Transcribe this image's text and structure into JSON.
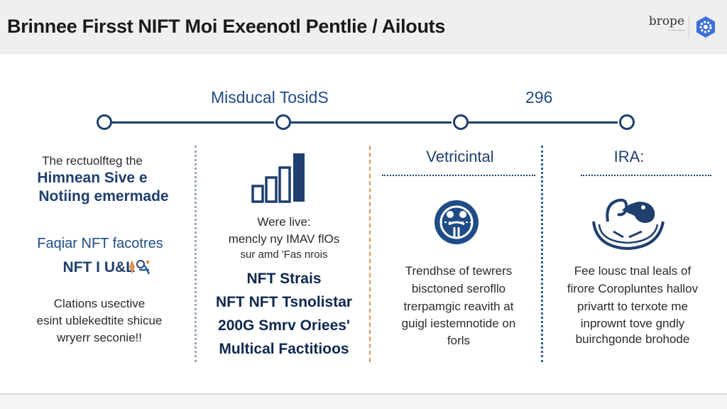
{
  "header": {
    "title": "Brinnee Firsst NIFT Moi Exeenotl Pentlie / Ailouts",
    "brand_name": "brope",
    "brand_sub": "----------"
  },
  "timeline": {
    "label_left": "Misducal TosidS",
    "label_right": "296"
  },
  "col1": {
    "line1": "The rectuolfteg the",
    "line2": "Himnean Sive e",
    "line3": "Notiing emermade",
    "line4": "Faqiar NFT facotres",
    "line5": "NFT I U&L",
    "line6": "Clations usective",
    "line7": "esint ublekedtite shicue",
    "line8": "wryerr seconie!!"
  },
  "col2": {
    "line1": "Were live:",
    "line2": "mencly ny IMAV flOs",
    "line3": "sur amd 'Fas nrois",
    "line4": "NFT Strais",
    "line5": "NFT NFT Tsnolistar",
    "line6": "200G Smrv Oriees'",
    "line7": "Multical Factitioos"
  },
  "col3": {
    "heading": "Vetricintal",
    "line1": "Trendhse of tewrers",
    "line2": "bisctoned serofllo",
    "line3": "trerpamgic reavith at",
    "line4": "guigl iestemnotide on",
    "line5": "forls"
  },
  "col4": {
    "heading": "IRA:",
    "line1": "Fee lousc tnal leals of",
    "line2": "firore Coropluntes hallov",
    "line3": "privartt to terxote me",
    "line4": "inprownt tove gndly",
    "line5": "buirchgonde brohode"
  },
  "icons": {
    "col1": "sparkle-icon",
    "col2": "bar-chart-icon",
    "col3": "globe-icon",
    "col4": "hands-icon",
    "brand": "gear-logo-icon"
  },
  "colors": {
    "navy": "#1f3f6e",
    "accent_orange": "#e0935a",
    "header_bg": "#efefef"
  }
}
